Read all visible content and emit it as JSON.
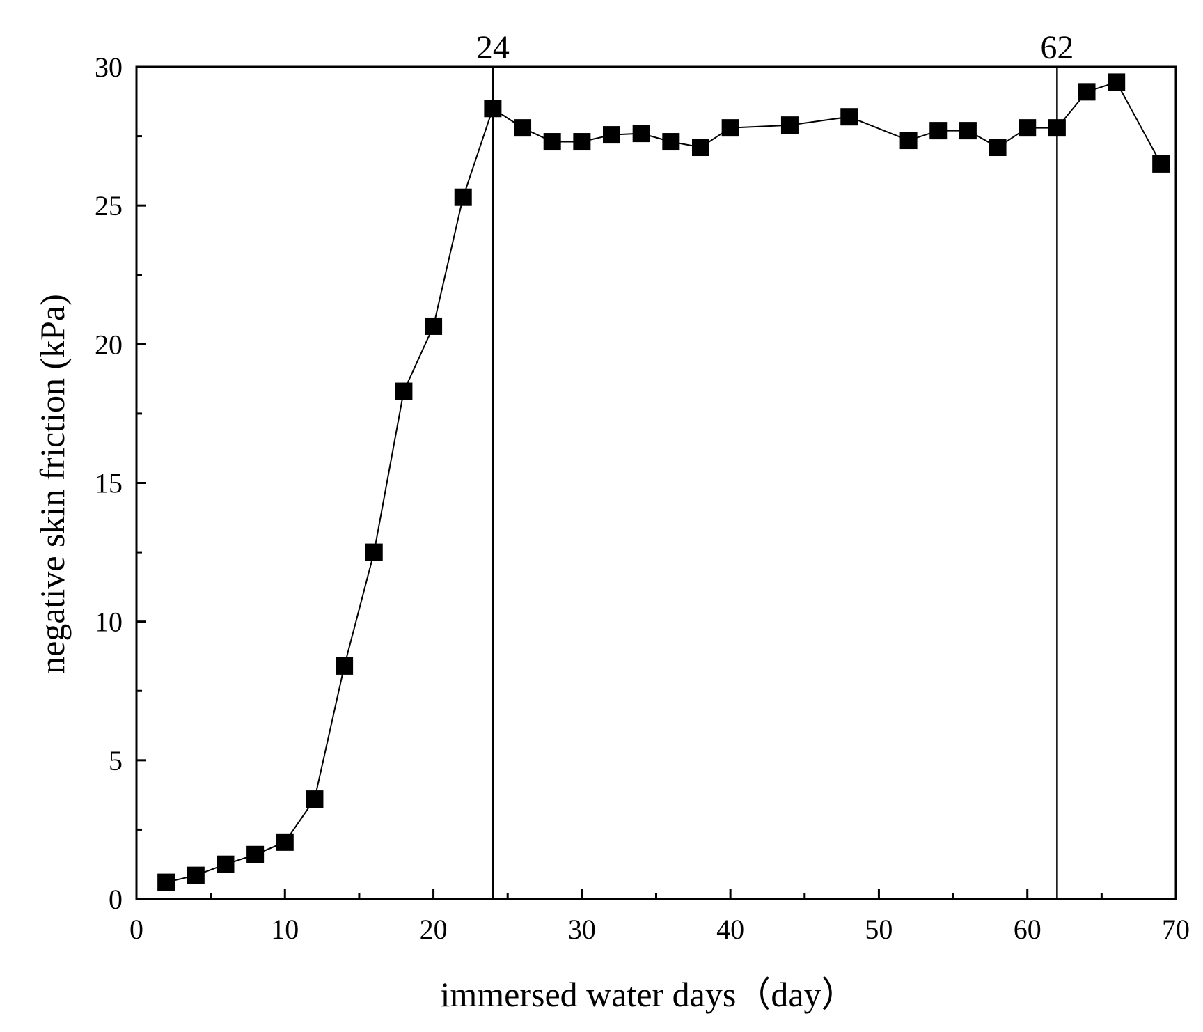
{
  "chart_data": {
    "type": "line",
    "title": "",
    "xlabel": "immersed water days（day）",
    "ylabel": "negative skin friction (kPa)",
    "xlim": [
      0,
      70
    ],
    "ylim": [
      0,
      30
    ],
    "x_ticks": [
      0,
      10,
      20,
      30,
      40,
      50,
      60,
      70
    ],
    "x_tick_labels": [
      "0",
      "10",
      "20",
      "30",
      "40",
      "50",
      "60",
      "70"
    ],
    "y_ticks": [
      0,
      5,
      10,
      15,
      20,
      25,
      30
    ],
    "y_tick_labels": [
      "0",
      "5",
      "10",
      "15",
      "20",
      "25",
      "30"
    ],
    "x_minor_step": 5,
    "y_minor_step": 2.5,
    "grid": false,
    "reference_lines": [
      {
        "x": 24,
        "label": "24"
      },
      {
        "x": 62,
        "label": "62"
      }
    ],
    "series": [
      {
        "name": "negative skin friction",
        "marker": "square",
        "color": "#000000",
        "x": [
          2,
          4,
          6,
          8,
          10,
          12,
          14,
          16,
          18,
          20,
          22,
          24,
          26,
          28,
          30,
          32,
          34,
          36,
          38,
          40,
          44,
          48,
          52,
          54,
          56,
          58,
          60,
          62,
          64,
          66,
          69
        ],
        "y": [
          0.6,
          0.85,
          1.25,
          1.6,
          2.05,
          3.6,
          8.4,
          12.5,
          18.3,
          20.65,
          25.3,
          28.5,
          27.8,
          27.3,
          27.3,
          27.55,
          27.6,
          27.3,
          27.1,
          27.8,
          27.9,
          28.2,
          27.35,
          27.7,
          27.7,
          27.1,
          27.8,
          27.8,
          29.1,
          29.45,
          26.5
        ]
      }
    ]
  }
}
